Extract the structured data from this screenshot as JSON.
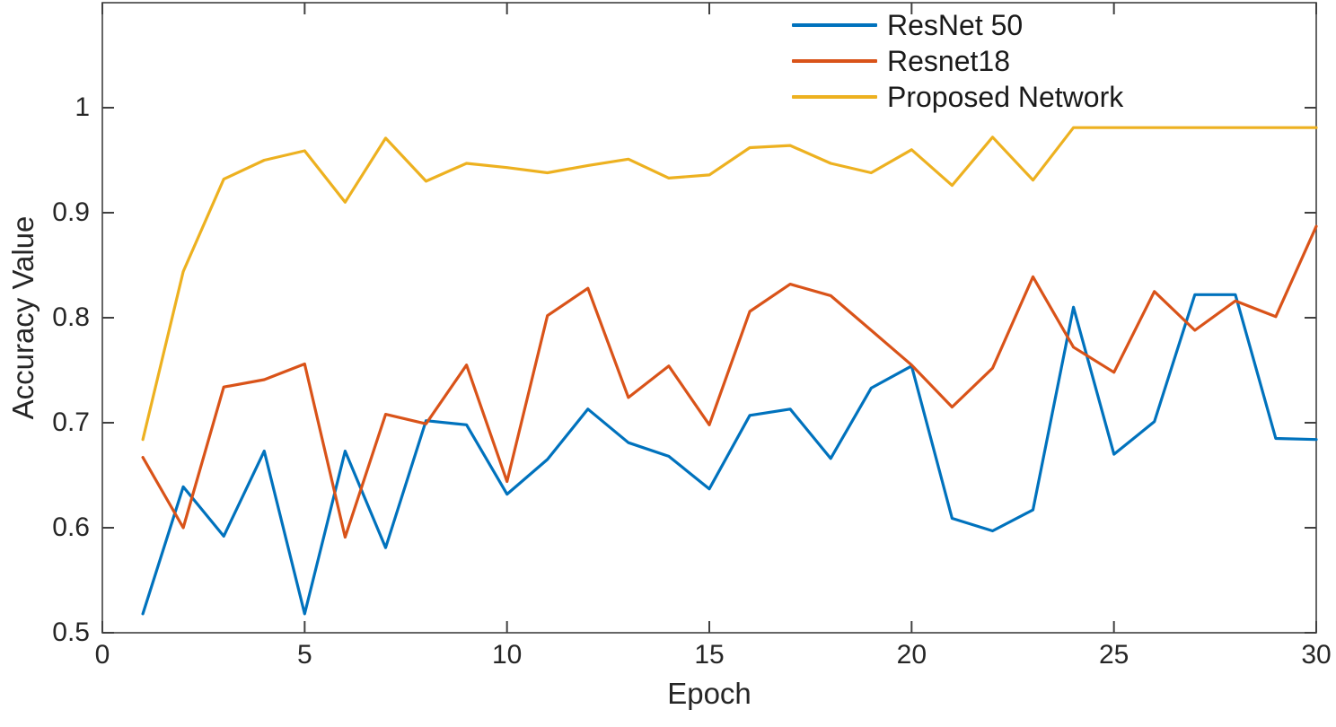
{
  "chart_data": {
    "type": "line",
    "title": "",
    "xlabel": "Epoch",
    "ylabel": "Accuracy Value",
    "xlim": [
      0,
      30
    ],
    "ylim": [
      0.5,
      1.1
    ],
    "x_tick_values": [
      0,
      5,
      10,
      15,
      20,
      25,
      30
    ],
    "x_tick_labels": [
      "0",
      "5",
      "10",
      "15",
      "20",
      "25",
      "30"
    ],
    "y_tick_values": [
      0.5,
      0.6,
      0.7,
      0.8,
      0.9,
      1.0
    ],
    "y_tick_labels": [
      "0.5",
      "0.6",
      "0.7",
      "0.8",
      "0.9",
      "1"
    ],
    "grid": false,
    "legend_position": "top-right-inside-no-box",
    "axis_color": "#404040",
    "tick_label_color": "#262626",
    "x": [
      1,
      2,
      3,
      4,
      5,
      6,
      7,
      8,
      9,
      10,
      11,
      12,
      13,
      14,
      15,
      16,
      17,
      18,
      19,
      20,
      21,
      22,
      23,
      24,
      25,
      26,
      27,
      28,
      29,
      30
    ],
    "series": [
      {
        "name": "ResNet 50",
        "color": "#0072BD",
        "values": [
          0.518,
          0.639,
          0.592,
          0.673,
          0.518,
          0.673,
          0.581,
          0.702,
          0.698,
          0.632,
          0.665,
          0.713,
          0.681,
          0.668,
          0.637,
          0.707,
          0.713,
          0.666,
          0.733,
          0.754,
          0.609,
          0.597,
          0.617,
          0.81,
          0.67,
          0.701,
          0.822,
          0.822,
          0.685,
          0.684
        ]
      },
      {
        "name": "Resnet18",
        "color": "#D95319",
        "values": [
          0.667,
          0.6,
          0.734,
          0.741,
          0.756,
          0.591,
          0.708,
          0.699,
          0.755,
          0.644,
          0.802,
          0.828,
          0.724,
          0.754,
          0.698,
          0.806,
          0.832,
          0.821,
          0.788,
          0.755,
          0.715,
          0.752,
          0.839,
          0.772,
          0.748,
          0.825,
          0.788,
          0.816,
          0.801,
          0.887
        ]
      },
      {
        "name": "Proposed Network",
        "color": "#EDB120",
        "values": [
          0.684,
          0.844,
          0.932,
          0.95,
          0.959,
          0.91,
          0.971,
          0.93,
          0.947,
          0.943,
          0.938,
          0.945,
          0.951,
          0.933,
          0.936,
          0.962,
          0.964,
          0.947,
          0.938,
          0.96,
          0.926,
          0.972,
          0.931,
          0.981,
          0.981,
          0.981,
          0.981,
          0.981,
          0.981,
          0.981
        ]
      }
    ]
  }
}
